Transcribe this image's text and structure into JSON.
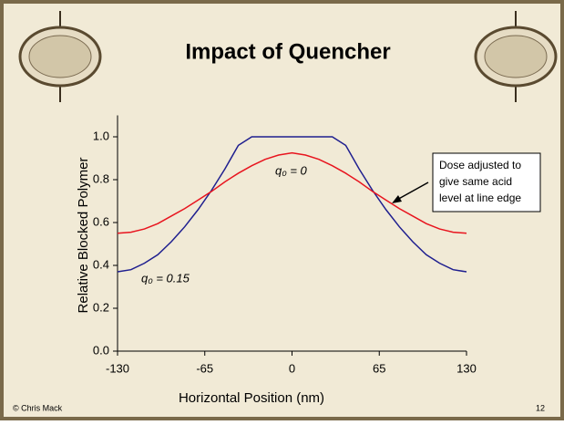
{
  "chart_data": {
    "type": "line",
    "title": "Impact of Quencher",
    "x_label": "Horizontal Position (nm)",
    "y_label": "Relative Blocked Polymer",
    "x": [
      -130,
      -120,
      -110,
      -100,
      -90,
      -80,
      -70,
      -60,
      -50,
      -40,
      -30,
      -20,
      -10,
      0,
      10,
      20,
      30,
      40,
      50,
      60,
      70,
      80,
      90,
      100,
      110,
      120,
      130
    ],
    "series": [
      {
        "name": "q₀ = 0.15",
        "color": "#1f1f8f",
        "values": [
          0.37,
          0.38,
          0.41,
          0.45,
          0.51,
          0.58,
          0.66,
          0.75,
          0.85,
          0.96,
          1.0,
          1.0,
          1.0,
          1.0,
          1.0,
          1.0,
          1.0,
          0.96,
          0.85,
          0.75,
          0.66,
          0.58,
          0.51,
          0.45,
          0.41,
          0.38,
          0.37
        ]
      },
      {
        "name": "q₀ = 0",
        "color": "#e8141e",
        "values": [
          0.55,
          0.555,
          0.57,
          0.595,
          0.63,
          0.665,
          0.705,
          0.745,
          0.79,
          0.83,
          0.865,
          0.895,
          0.915,
          0.925,
          0.915,
          0.895,
          0.865,
          0.83,
          0.79,
          0.745,
          0.705,
          0.665,
          0.63,
          0.595,
          0.57,
          0.555,
          0.55
        ]
      }
    ],
    "xlim": [
      -130,
      130
    ],
    "xticks": [
      -130,
      -65,
      0,
      65,
      130
    ],
    "ylim": [
      0,
      1.1
    ],
    "yticks": [
      {
        "value": 0,
        "label": "0.0"
      },
      0.2,
      0.4,
      0.6,
      0.8,
      {
        "value": 1,
        "label": "1.0"
      }
    ],
    "callout": [
      "Dose adjusted to",
      "give same acid",
      "level at line edge"
    ],
    "footer": "© Chris Mack",
    "page_number": "12"
  }
}
